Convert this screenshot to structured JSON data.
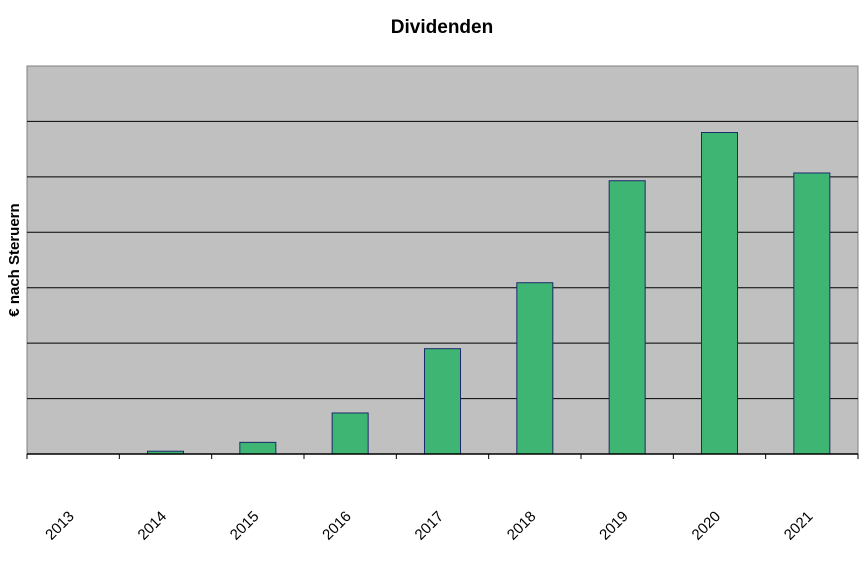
{
  "chart_data": {
    "type": "bar",
    "title": "Dividenden",
    "xlabel": "",
    "ylabel": "€ nach Steruern",
    "categories": [
      "2013",
      "2014",
      "2015",
      "2016",
      "2017",
      "2018",
      "2019",
      "2020",
      "2021"
    ],
    "values": [
      0,
      0.05,
      0.21,
      0.74,
      1.9,
      3.09,
      4.93,
      5.8,
      5.07
    ],
    "ylim": [
      0,
      7
    ],
    "grid": true,
    "y_tick_labels_shown": false,
    "legend": "none",
    "colors": {
      "bar_fill": "#3fb573",
      "bar_stroke": "#1a2a6c",
      "plot_background": "#c0c0c0",
      "gridline": "#000000"
    }
  }
}
